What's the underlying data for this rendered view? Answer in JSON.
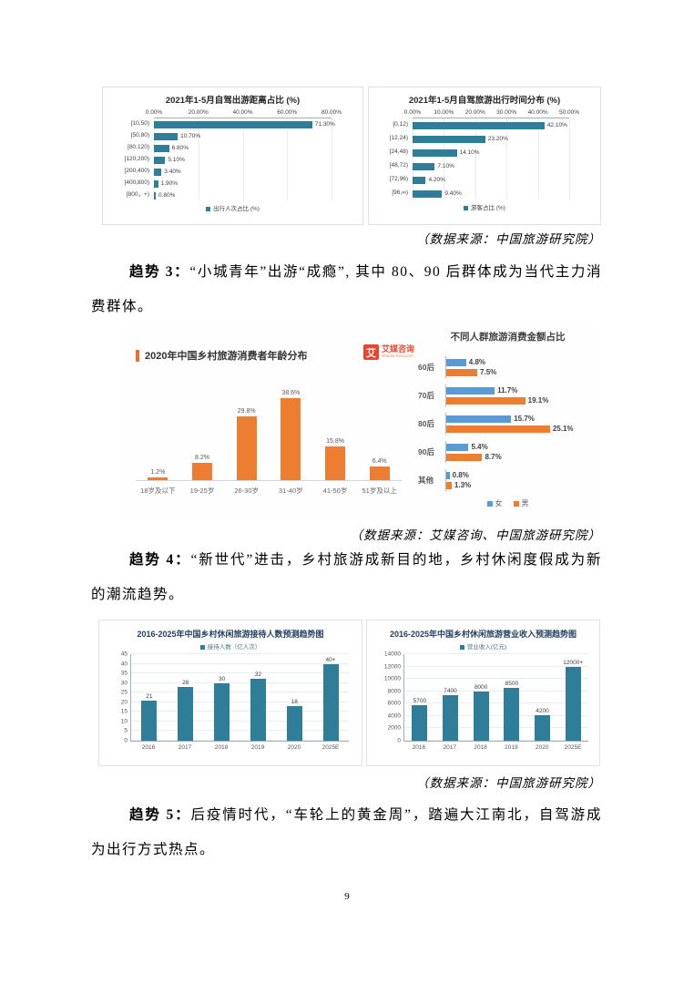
{
  "page_number": "9",
  "sources": {
    "s1": "（数据来源：中国旅游研究院）",
    "s2": "（数据来源：艾媒咨询、中国旅游研究院）",
    "s3": "（数据来源：中国旅游研究院）"
  },
  "trends": {
    "t3": {
      "label": "趋势 3：",
      "text": "“小城青年”出游“成瘾”, 其中 80、90 后群体成为当代主力消费群体。"
    },
    "t4": {
      "label": "趋势 4：",
      "text": "“新世代”进击，乡村旅游成新目的地，乡村休闲度假成为新的潮流趋势。"
    },
    "t5": {
      "label": "趋势 5：",
      "text": "后疫情时代，“车轮上的黄金周”，踏遍大江南北，自驾游成为出行方式热点。"
    }
  },
  "logo": {
    "mark": "艾",
    "name": "艾媒咨询",
    "subname": "iiMedia Research"
  },
  "colors": {
    "teal": "#2e7e99",
    "orange": "#ed7d31",
    "blue": "#5b9bd5",
    "logo_red": "#e8472b",
    "accent_orange": "#e8702c"
  },
  "chart_data": [
    {
      "type": "bar",
      "orientation": "horizontal",
      "title": "2021年1-5月自驾出游距离占比 (%)",
      "categories": [
        "[10,50)",
        "[50,80)",
        "[80,120)",
        "[120,200)",
        "[200,400)",
        "[400,800)",
        "[800，+)"
      ],
      "values": [
        71.3,
        10.7,
        6.8,
        5.1,
        3.4,
        1.9,
        0.8
      ],
      "value_labels": [
        "71.30%",
        "10.70%",
        "6.80%",
        "5.10%",
        "3.40%",
        "1.90%",
        "0.80%"
      ],
      "xlim": [
        0,
        80
      ],
      "ticks": [
        "0.00%",
        "20.00%",
        "40.00%",
        "60.00%",
        "80.00%"
      ],
      "legend": "出行人次占比 (%)",
      "bar_color": "#2e7e99",
      "grid": true,
      "legend_position": "bottom"
    },
    {
      "type": "bar",
      "orientation": "horizontal",
      "title": "2021年1-5月自驾旅游出行时间分布 (%)",
      "categories": [
        "[0,12)",
        "[12,24)",
        "[24,48)",
        "[48,72)",
        "[72,96)",
        "[96,∞)"
      ],
      "values": [
        42.1,
        23.2,
        14.1,
        7.1,
        4.2,
        9.4
      ],
      "value_labels": [
        "42.10%",
        "23.20%",
        "14.10%",
        "7.10%",
        "4.20%",
        "9.40%"
      ],
      "xlim": [
        0,
        50
      ],
      "ticks": [
        "0.00%",
        "10.00%",
        "20.00%",
        "30.00%",
        "40.00%",
        "50.00%"
      ],
      "legend": "游客占比 (%)",
      "bar_color": "#2e7e99",
      "grid": true,
      "legend_position": "bottom"
    },
    {
      "type": "bar",
      "orientation": "vertical",
      "title": "2020年中国乡村旅游消费者年龄分布",
      "categories": [
        "18岁及以下",
        "19-25岁",
        "26-30岁",
        "31-40岁",
        "41-50岁",
        "51岁及以上"
      ],
      "values": [
        1.2,
        8.2,
        29.8,
        38.6,
        15.8,
        6.4
      ],
      "value_labels": [
        "1.2%",
        "8.2%",
        "29.8%",
        "38.6%",
        "15.8%",
        "6.4%"
      ],
      "ylim": [
        0,
        42
      ],
      "yticks": [],
      "bar_color": "#ed7d31",
      "grid": false
    },
    {
      "type": "bar",
      "orientation": "horizontal-grouped",
      "title": "不同人群旅游消费金额占比",
      "categories": [
        "60后",
        "70后",
        "80后",
        "90后",
        "其他"
      ],
      "series": [
        {
          "name": "女",
          "color": "#5b9bd5",
          "values": [
            4.8,
            11.7,
            15.7,
            5.4,
            0.8
          ],
          "labels": [
            "4.8%",
            "11.7%",
            "15.7%",
            "5.4%",
            "0.8%"
          ]
        },
        {
          "name": "男",
          "color": "#ed7d31",
          "values": [
            7.5,
            19.1,
            25.1,
            8.7,
            1.3
          ],
          "labels": [
            "7.5%",
            "19.1%",
            "25.1%",
            "8.7%",
            "1.3%"
          ]
        }
      ],
      "xlim": [
        0,
        28
      ],
      "legend_position": "bottom"
    },
    {
      "type": "bar",
      "orientation": "vertical",
      "title": "2016-2025年中国乡村休闲旅游接待人数预测趋势图",
      "legend": "接待人数（亿人次）",
      "categories": [
        "2016",
        "2017",
        "2018",
        "2019",
        "2020",
        "2025E"
      ],
      "values": [
        21,
        28,
        30,
        32,
        18,
        40
      ],
      "value_labels": [
        "21",
        "28",
        "30",
        "32",
        "18",
        "40+"
      ],
      "ylim": [
        0,
        45
      ],
      "yticks": [
        0,
        5,
        10,
        15,
        20,
        25,
        30,
        35,
        40,
        45
      ],
      "bar_color": "#2e7e99",
      "grid": true,
      "legend_position": "top"
    },
    {
      "type": "bar",
      "orientation": "vertical",
      "title": "2016-2025年中国乡村休闲旅游营业收入预测趋势图",
      "legend": "营业收入(亿元)",
      "categories": [
        "2016",
        "2017",
        "2018",
        "2019",
        "2020",
        "2025E"
      ],
      "values": [
        5700,
        7400,
        8000,
        8500,
        4200,
        12000
      ],
      "value_labels": [
        "5700",
        "7400",
        "8000",
        "8500",
        "4200",
        "12000+"
      ],
      "ylim": [
        0,
        14000
      ],
      "yticks": [
        0,
        2000,
        4000,
        6000,
        8000,
        10000,
        12000,
        14000
      ],
      "bar_color": "#2e7e99",
      "grid": true,
      "legend_position": "top"
    }
  ]
}
